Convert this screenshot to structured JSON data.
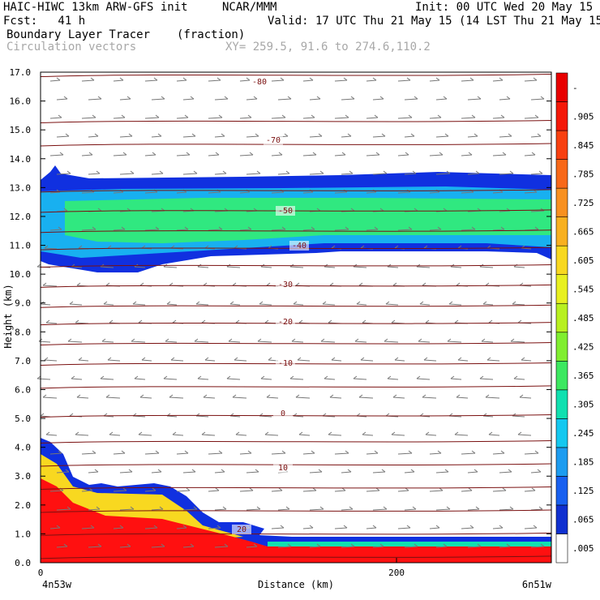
{
  "header": {
    "line1_left": "HAIC-HIWC 13km ARW-GFS init",
    "line1_mid": "NCAR/MMM",
    "line1_right": "Init: 00 UTC Wed 20 May 15",
    "line2_left": "Fcst:   41 h",
    "line2_right": "Valid: 17 UTC Thu 21 May 15 (14 LST Thu 21 May 15)",
    "line3_left": "Boundary Layer Tracer",
    "line3_mid": "(fraction)",
    "line4_left": "Circulation vectors",
    "line4_mid": "XY= 259.5, 91.6 to 274.6,110.2"
  },
  "chart_data": {
    "type": "heatmap",
    "xlabel": "Distance (km)",
    "ylabel": "Height (km)",
    "xlim": [
      0,
      287
    ],
    "ylim": [
      0.0,
      17.0
    ],
    "x_ticks": [
      0,
      200
    ],
    "x_tick_labels": [
      "0",
      "200"
    ],
    "x_end_labels": [
      "4n53w",
      "6n51w"
    ],
    "y_ticks": [
      0.0,
      1.0,
      2.0,
      3.0,
      4.0,
      5.0,
      6.0,
      7.0,
      8.0,
      9.0,
      10.0,
      11.0,
      12.0,
      13.0,
      14.0,
      15.0,
      16.0,
      17.0
    ],
    "y_tick_labels": [
      "0.0",
      "1.0",
      "2.0",
      "3.0",
      "4.0",
      "5.0",
      "6.0",
      "7.0",
      "8.0",
      "9.0",
      "10.0",
      "11.0",
      "12.0",
      "13.0",
      "14.0",
      "15.0",
      "16.0",
      "17.0"
    ],
    "colorbar_labels": [
      ".005",
      ".065",
      ".125",
      ".185",
      ".245",
      ".305",
      ".365",
      ".425",
      ".485",
      ".545",
      ".605",
      ".665",
      ".725",
      ".785",
      ".845",
      ".905",
      "-"
    ],
    "colorbar_colors": [
      "#ffffff",
      "#1030d0",
      "#1860f0",
      "#1d9cf0",
      "#14c8f0",
      "#10e0b0",
      "#3ce860",
      "#80ee30",
      "#b8f020",
      "#e8f020",
      "#f8d820",
      "#f8b020",
      "#f89020",
      "#f86818",
      "#f84010",
      "#f41808",
      "#e80000"
    ],
    "contour_labels": [
      "-80",
      "-70",
      "-50",
      "-40",
      "-30",
      "-20",
      "-10",
      "0",
      "10",
      "20"
    ],
    "contour_heights_km": [
      16.9,
      15.3,
      14.5,
      12.9,
      12.2,
      11.5,
      10.9,
      10.3,
      9.6,
      8.9,
      8.3,
      7.6,
      6.9,
      6.1,
      5.1,
      4.2,
      3.4,
      2.6,
      1.8,
      1.0,
      0.2
    ],
    "tracer_colors": {
      "upper_shell": "#1030e0",
      "upper_mid": "#18b0f0",
      "upper_core": "#30e880",
      "lower_red": "#ff1010"
    }
  }
}
